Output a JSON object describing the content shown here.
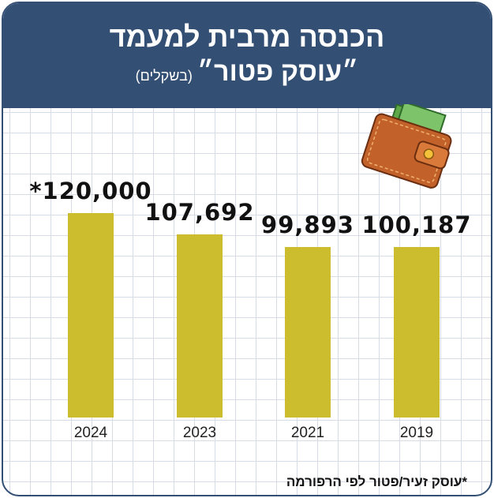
{
  "chart_data": {
    "type": "bar",
    "title": "הכנסה מרבית למעמד",
    "subtitle": "״עוסק פטור״",
    "unit_label": "(בשקלים)",
    "categories": [
      "2024",
      "2023",
      "2021",
      "2019"
    ],
    "values": [
      120000,
      107692,
      99893,
      100187
    ],
    "value_labels": [
      "*120,000",
      "107,692",
      "99,893",
      "100,187"
    ],
    "bar_color": "#cbbd2e",
    "ylim": [
      0,
      130000
    ],
    "grid": true,
    "footnote": "*עוסק זעיר/פטור לפי הרפורמה"
  },
  "colors": {
    "header": "#344f74"
  }
}
